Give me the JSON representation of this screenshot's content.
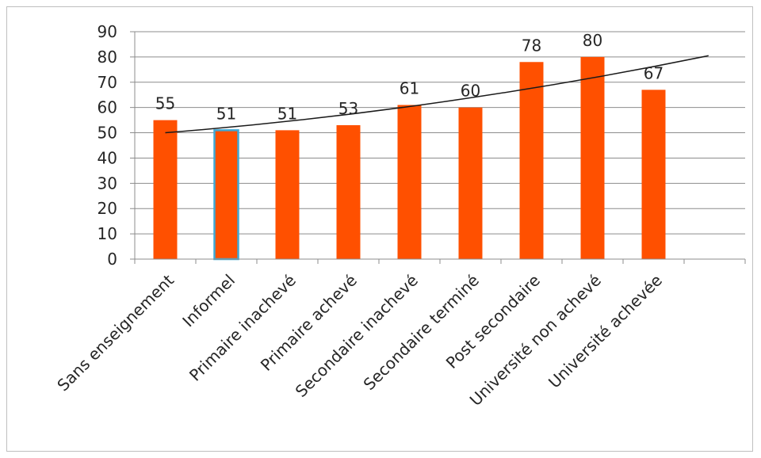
{
  "chart_data": {
    "type": "bar",
    "title": "",
    "xlabel": "",
    "ylabel": "",
    "categories": [
      "Sans enseignement",
      "Informel",
      "Primaire inachevé",
      "Primaire achevé",
      "Secondaire inachevé",
      "Secondaire terminé",
      "Post secondaire",
      "Université non achevé",
      "Université achevée"
    ],
    "values": [
      55,
      51,
      51,
      53,
      61,
      60,
      78,
      80,
      67
    ],
    "value_labels": [
      "55",
      "51",
      "51",
      "53",
      "61",
      "60",
      "78",
      "80",
      "67"
    ],
    "ylim": [
      0,
      90
    ],
    "yticks": [
      "0",
      "10",
      "20",
      "30",
      "40",
      "50",
      "60",
      "70",
      "80",
      "90"
    ],
    "grid": true,
    "legend": "none",
    "trendline": {
      "type": "polynomial",
      "start_value": 50,
      "end_value": 80.5
    },
    "colors": {
      "bar": "#ff5000",
      "highlight_bar_border": "#3fa9d5",
      "grid": "#8c8c8c",
      "axis": "#8c8c8c",
      "trendline": "#1a1a1a",
      "text": "#262626"
    },
    "highlighted_category": "Informel"
  }
}
